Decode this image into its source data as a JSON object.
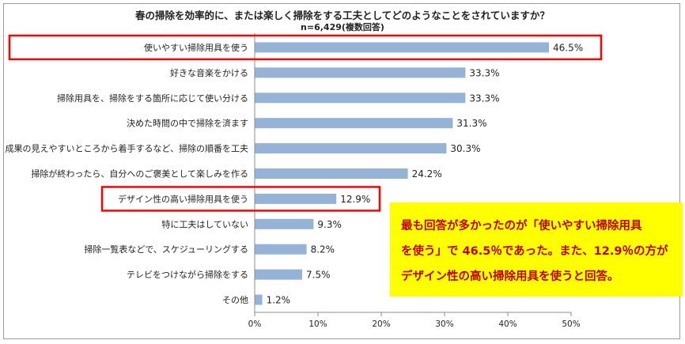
{
  "chart_data": {
    "type": "bar",
    "orientation": "horizontal",
    "title": "春の掃除を効率的に、または楽しく掃除をする工夫としてどのようなことをされていますか？",
    "subtitle": "n=6,429(複数回答)",
    "categories": [
      "使いやすい掃除用具を使う",
      "好きな音楽をかける",
      "掃除用具を、掃除をする箇所に応じて使い分ける",
      "決めた時間の中で掃除を済ます",
      "成果の見えやすいところから着手するなど、掃除の順番を工夫",
      "掃除が終わったら、自分へのご褒美として楽しみを作る",
      "デザイン性の高い掃除用具を使う",
      "特に工夫はしていない",
      "掃除一覧表などで、スケジューリングする",
      "テレビをつけながら掃除をする",
      "その他"
    ],
    "values": [
      46.5,
      33.3,
      33.3,
      31.3,
      30.3,
      24.2,
      12.9,
      9.3,
      8.2,
      7.5,
      1.2
    ],
    "value_labels": [
      "46.5%",
      "33.3%",
      "33.3%",
      "31.3%",
      "30.3%",
      "24.2%",
      "12.9%",
      "9.3%",
      "8.2%",
      "7.5%",
      "1.2%"
    ],
    "xlim": [
      0,
      50
    ],
    "ticks": [
      0,
      10,
      20,
      30,
      40,
      50
    ],
    "tick_labels": [
      "0%",
      "10%",
      "20%",
      "30%",
      "40%",
      "50%"
    ],
    "highlighted": [
      0,
      6
    ],
    "grid": false,
    "bar_color": "#95b3d7",
    "highlight_color": "#ff0000"
  },
  "callout": {
    "lines": [
      "最も回答が多かったのが「使いやすい掃除用具",
      "を使う」で 46.5％であった。また、12.9％の方が",
      "デザイン性の高い掃除用具を使うと回答。"
    ],
    "color": "#c00000",
    "background": "#ffff00"
  }
}
